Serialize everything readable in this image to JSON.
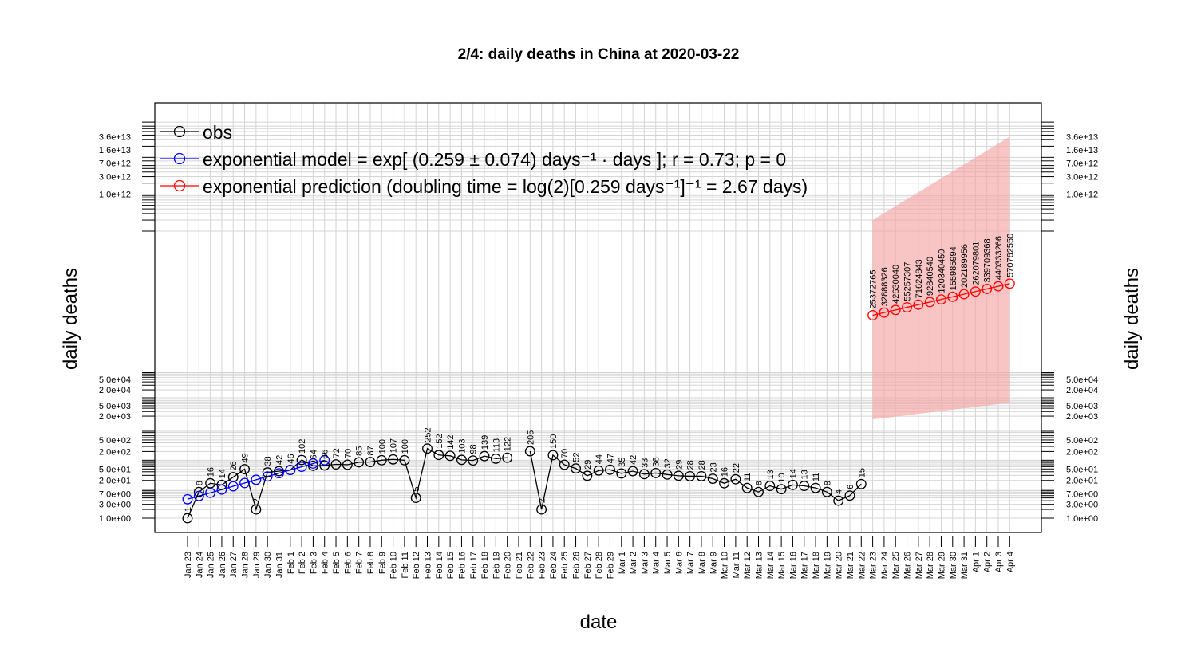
{
  "chart_data": {
    "type": "line",
    "title": "2/4: daily deaths in China at 2020-03-22",
    "xlabel": "date",
    "ylabel": "daily deaths",
    "yscale": "log",
    "grid": true,
    "legend_position": "top-left",
    "legend": [
      {
        "key": "obs",
        "color": "#000000",
        "text": "obs"
      },
      {
        "key": "model",
        "color": "#0000ff",
        "text": "exponential model = exp[ (0.259 ± 0.074) days⁻¹ · days ]; r = 0.73; p = 0"
      },
      {
        "key": "pred",
        "color": "#ff0000",
        "text": "exponential prediction (doubling time = log(2)[0.259 days⁻¹]⁻¹ = 2.67 days)"
      }
    ],
    "dates": [
      "Jan 23",
      "Jan 24",
      "Jan 25",
      "Jan 26",
      "Jan 27",
      "Jan 28",
      "Jan 29",
      "Jan 30",
      "Jan 31",
      "Feb 1",
      "Feb 2",
      "Feb 3",
      "Feb 4",
      "Feb 5",
      "Feb 6",
      "Feb 7",
      "Feb 8",
      "Feb 9",
      "Feb 10",
      "Feb 11",
      "Feb 12",
      "Feb 13",
      "Feb 14",
      "Feb 15",
      "Feb 16",
      "Feb 17",
      "Feb 18",
      "Feb 19",
      "Feb 20",
      "Feb 21",
      "Feb 22",
      "Feb 23",
      "Feb 24",
      "Feb 25",
      "Feb 26",
      "Feb 27",
      "Feb 28",
      "Feb 29",
      "Mar 1",
      "Mar 2",
      "Mar 3",
      "Mar 4",
      "Mar 5",
      "Mar 6",
      "Mar 7",
      "Mar 8",
      "Mar 9",
      "Mar 10",
      "Mar 11",
      "Mar 12",
      "Mar 13",
      "Mar 14",
      "Mar 15",
      "Mar 16",
      "Mar 17",
      "Mar 18",
      "Mar 19",
      "Mar 20",
      "Mar 21",
      "Mar 22",
      "Mar 23",
      "Mar 24",
      "Mar 25",
      "Mar 26",
      "Mar 27",
      "Mar 28",
      "Mar 29",
      "Mar 30",
      "Mar 31",
      "Apr 1",
      "Apr 2",
      "Apr 3",
      "Apr 4"
    ],
    "y_tick_labels": [
      "1.0e+00",
      "3.0e+00",
      "7.0e+00",
      "2.0e+01",
      "5.0e+01",
      "2.0e+02",
      "5.0e+02",
      "2.0e+03",
      "5.0e+03",
      "2.0e+04",
      "5.0e+04",
      "1.0e+12",
      "3.0e+12",
      "7.0e+12",
      "1.6e+13",
      "3.6e+13"
    ],
    "series": [
      {
        "name": "obs",
        "color": "#000000",
        "points": [
          {
            "i": 0,
            "v": 1,
            "label": "1"
          },
          {
            "i": 1,
            "v": 8,
            "label": "8"
          },
          {
            "i": 2,
            "v": 16,
            "label": "16"
          },
          {
            "i": 3,
            "v": 14,
            "label": "14"
          },
          {
            "i": 4,
            "v": 26,
            "label": "26"
          },
          {
            "i": 5,
            "v": 49,
            "label": "49"
          },
          {
            "i": 6,
            "v": 2,
            "label": "2"
          },
          {
            "i": 7,
            "v": 38,
            "label": "38"
          },
          {
            "i": 8,
            "v": 42,
            "label": "42"
          },
          {
            "i": 9,
            "v": 46,
            "label": "46"
          },
          {
            "i": 10,
            "v": 102,
            "label": "102"
          },
          {
            "i": 11,
            "v": 64,
            "label": "64"
          },
          {
            "i": 12,
            "v": 66,
            "label": "66"
          },
          {
            "i": 13,
            "v": 72,
            "label": "72"
          },
          {
            "i": 14,
            "v": 70,
            "label": "70"
          },
          {
            "i": 15,
            "v": 85,
            "label": "85"
          },
          {
            "i": 16,
            "v": 87,
            "label": "87"
          },
          {
            "i": 17,
            "v": 100,
            "label": "100"
          },
          {
            "i": 18,
            "v": 107,
            "label": "107"
          },
          {
            "i": 19,
            "v": 100,
            "label": "100"
          },
          {
            "i": 20,
            "v": 5,
            "label": "5"
          },
          {
            "i": 21,
            "v": 252,
            "label": "252"
          },
          {
            "i": 22,
            "v": 152,
            "label": "152"
          },
          {
            "i": 23,
            "v": 142,
            "label": "142"
          },
          {
            "i": 24,
            "v": 103,
            "label": "103"
          },
          {
            "i": 25,
            "v": 98,
            "label": "98"
          },
          {
            "i": 26,
            "v": 139,
            "label": "139"
          },
          {
            "i": 27,
            "v": 113,
            "label": "113"
          },
          {
            "i": 28,
            "v": 122,
            "label": "122"
          },
          {
            "i": 30,
            "v": 205,
            "label": "205"
          },
          {
            "i": 31,
            "v": 2,
            "label": "2"
          },
          {
            "i": 32,
            "v": 150,
            "label": "150"
          },
          {
            "i": 33,
            "v": 70,
            "label": "70"
          },
          {
            "i": 34,
            "v": 52,
            "label": "52"
          },
          {
            "i": 35,
            "v": 29,
            "label": "29"
          },
          {
            "i": 36,
            "v": 44,
            "label": "44"
          },
          {
            "i": 37,
            "v": 47,
            "label": "47"
          },
          {
            "i": 38,
            "v": 35,
            "label": "35"
          },
          {
            "i": 39,
            "v": 42,
            "label": "42"
          },
          {
            "i": 40,
            "v": 33,
            "label": "33"
          },
          {
            "i": 41,
            "v": 36,
            "label": "36"
          },
          {
            "i": 42,
            "v": 32,
            "label": "32"
          },
          {
            "i": 43,
            "v": 29,
            "label": "29"
          },
          {
            "i": 44,
            "v": 28,
            "label": "28"
          },
          {
            "i": 45,
            "v": 28,
            "label": "28"
          },
          {
            "i": 46,
            "v": 23,
            "label": "23"
          },
          {
            "i": 47,
            "v": 16,
            "label": "16"
          },
          {
            "i": 48,
            "v": 22,
            "label": "22"
          },
          {
            "i": 49,
            "v": 11,
            "label": "11"
          },
          {
            "i": 50,
            "v": 8,
            "label": "8"
          },
          {
            "i": 51,
            "v": 13,
            "label": "13"
          },
          {
            "i": 52,
            "v": 10,
            "label": "10"
          },
          {
            "i": 53,
            "v": 14,
            "label": "14"
          },
          {
            "i": 54,
            "v": 13,
            "label": "13"
          },
          {
            "i": 55,
            "v": 11,
            "label": "11"
          },
          {
            "i": 56,
            "v": 8,
            "label": "8"
          },
          {
            "i": 57,
            "v": 4,
            "label": "4"
          },
          {
            "i": 58,
            "v": 6,
            "label": "6"
          },
          {
            "i": 59,
            "v": 15,
            "label": "15"
          }
        ]
      },
      {
        "name": "exponential model",
        "color": "#0000ff",
        "points": [
          {
            "i": 0,
            "v": 4.5
          },
          {
            "i": 1,
            "v": 5.8
          },
          {
            "i": 2,
            "v": 7.5
          },
          {
            "i": 3,
            "v": 9.7
          },
          {
            "i": 4,
            "v": 12.6
          },
          {
            "i": 5,
            "v": 16.3
          },
          {
            "i": 6,
            "v": 21.1
          },
          {
            "i": 7,
            "v": 27.4
          },
          {
            "i": 8,
            "v": 35.5
          },
          {
            "i": 9,
            "v": 46
          },
          {
            "i": 10,
            "v": 59.5
          },
          {
            "i": 11,
            "v": 77
          },
          {
            "i": 12,
            "v": 99.8
          }
        ]
      },
      {
        "name": "exponential prediction",
        "color": "#ff0000",
        "points": [
          {
            "i": 60,
            "v": 25372765,
            "label": "25372765"
          },
          {
            "i": 61,
            "v": 32888326,
            "label": "32888326"
          },
          {
            "i": 62,
            "v": 42630040,
            "label": "42630040"
          },
          {
            "i": 63,
            "v": 55257307,
            "label": "55257307"
          },
          {
            "i": 64,
            "v": 71624843,
            "label": "71624843"
          },
          {
            "i": 65,
            "v": 92840540,
            "label": "92840540"
          },
          {
            "i": 66,
            "v": 120340450,
            "label": "120340450"
          },
          {
            "i": 67,
            "v": 155985994,
            "label": "155985994"
          },
          {
            "i": 68,
            "v": 202189956,
            "label": "202189956"
          },
          {
            "i": 69,
            "v": 262079801,
            "label": "262079801"
          },
          {
            "i": 70,
            "v": 339709368,
            "label": "339709368"
          },
          {
            "i": 71,
            "v": 440333266,
            "label": "440333266"
          },
          {
            "i": 72,
            "v": 570762550,
            "label": "570762550"
          }
        ]
      }
    ],
    "prediction_band": {
      "color": "#f4a5a5",
      "lower": [
        {
          "i": 60,
          "v": 1500
        },
        {
          "i": 72,
          "v": 6500
        }
      ],
      "upper": [
        {
          "i": 60,
          "v": 200000000000.0
        },
        {
          "i": 72,
          "v": 36000000000000.0
        }
      ]
    }
  }
}
